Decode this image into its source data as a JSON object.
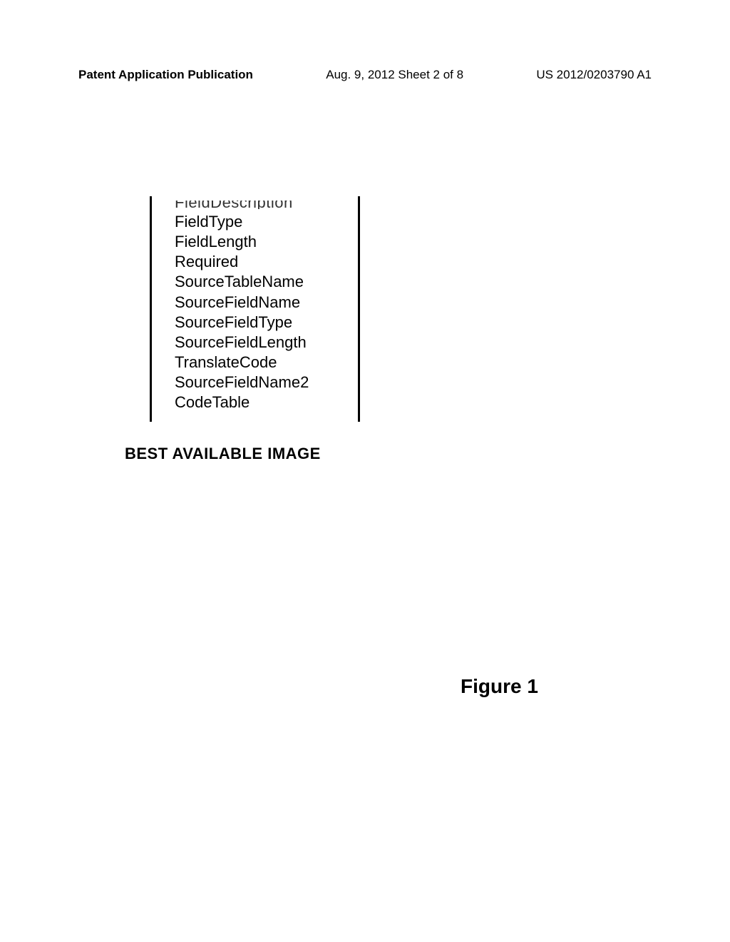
{
  "header": {
    "left": "Patent Application Publication",
    "center": "Aug. 9, 2012  Sheet 2 of 8",
    "right": "US 2012/0203790 A1"
  },
  "table": {
    "cut_text": "FieldDescription",
    "fields": [
      "FieldType",
      "FieldLength",
      "Required",
      "SourceTableName",
      "SourceFieldName",
      "SourceFieldType",
      "SourceFieldLength",
      "TranslateCode",
      "SourceFieldName2",
      "CodeTable"
    ]
  },
  "best_available": "BEST AVAILABLE IMAGE",
  "figure_label": "Figure 1"
}
